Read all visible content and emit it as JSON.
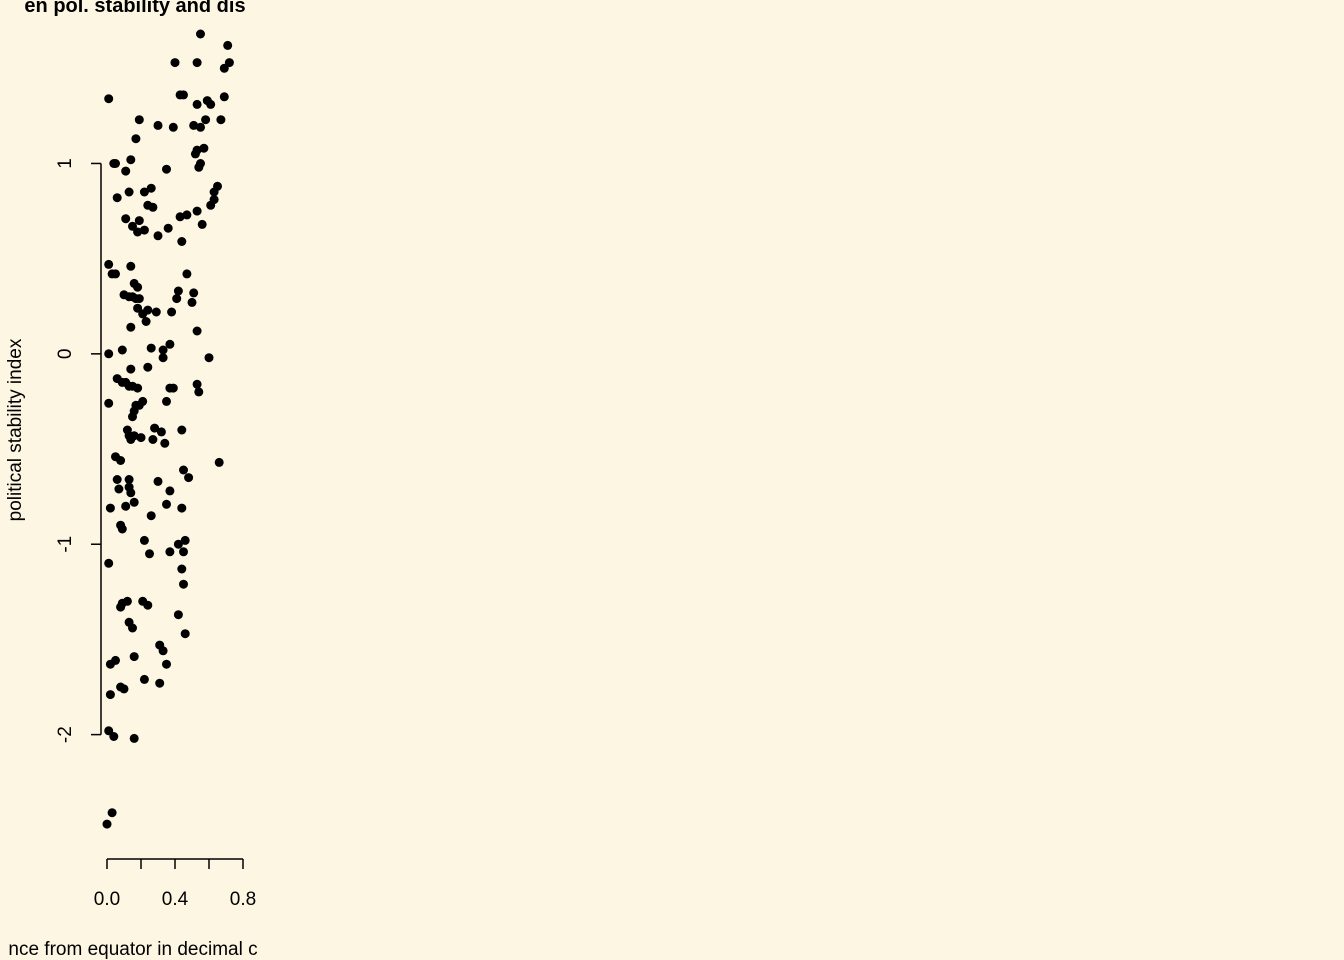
{
  "chart_data": {
    "type": "scatter",
    "title": "en pol. stability and dis",
    "xlabel": "nce from equator in decimal c",
    "ylabel": "political stability index",
    "x_ticks": [
      {
        "value": 0.0,
        "label": "0.0"
      },
      {
        "value": 0.2,
        "label": ""
      },
      {
        "value": 0.4,
        "label": "0.4"
      },
      {
        "value": 0.6,
        "label": ""
      },
      {
        "value": 0.8,
        "label": "0.8"
      }
    ],
    "y_ticks": [
      {
        "value": -2,
        "label": "-2"
      },
      {
        "value": -1,
        "label": "-1"
      },
      {
        "value": 0,
        "label": "0"
      },
      {
        "value": 1,
        "label": "1"
      }
    ],
    "xlim": [
      0.0,
      0.8
    ],
    "ylim": [
      -2.48,
      1.68
    ],
    "grid": false,
    "point_color": "#000000",
    "background_color": "#FDF6E3",
    "points": [
      [
        0.01,
        1.34
      ],
      [
        0.04,
        1.0
      ],
      [
        0.05,
        1.0
      ],
      [
        0.11,
        0.96
      ],
      [
        0.14,
        1.02
      ],
      [
        0.06,
        0.82
      ],
      [
        0.13,
        0.85
      ],
      [
        0.17,
        1.13
      ],
      [
        0.19,
        1.23
      ],
      [
        0.3,
        1.2
      ],
      [
        0.4,
        1.53
      ],
      [
        0.39,
        1.19
      ],
      [
        0.35,
        0.97
      ],
      [
        0.22,
        0.85
      ],
      [
        0.26,
        0.87
      ],
      [
        0.24,
        0.78
      ],
      [
        0.27,
        0.77
      ],
      [
        0.19,
        0.7
      ],
      [
        0.15,
        0.67
      ],
      [
        0.11,
        0.71
      ],
      [
        0.18,
        0.64
      ],
      [
        0.22,
        0.65
      ],
      [
        0.3,
        0.62
      ],
      [
        0.36,
        0.66
      ],
      [
        0.43,
        0.72
      ],
      [
        0.47,
        0.73
      ],
      [
        0.53,
        0.75
      ],
      [
        0.56,
        0.68
      ],
      [
        0.44,
        0.59
      ],
      [
        0.54,
        0.98
      ],
      [
        0.52,
        1.05
      ],
      [
        0.55,
        1.0
      ],
      [
        0.53,
        1.07
      ],
      [
        0.57,
        1.08
      ],
      [
        0.51,
        1.2
      ],
      [
        0.55,
        1.19
      ],
      [
        0.58,
        1.23
      ],
      [
        0.61,
        1.31
      ],
      [
        0.59,
        1.33
      ],
      [
        0.53,
        1.31
      ],
      [
        0.43,
        1.36
      ],
      [
        0.45,
        1.36
      ],
      [
        0.53,
        1.53
      ],
      [
        0.55,
        1.68
      ],
      [
        0.67,
        1.23
      ],
      [
        0.69,
        1.35
      ],
      [
        0.69,
        1.5
      ],
      [
        0.72,
        1.53
      ],
      [
        0.71,
        1.62
      ],
      [
        0.65,
        0.88
      ],
      [
        0.63,
        0.85
      ],
      [
        0.61,
        0.78
      ],
      [
        0.63,
        0.81
      ],
      [
        0.01,
        0.47
      ],
      [
        0.03,
        0.42
      ],
      [
        0.05,
        0.42
      ],
      [
        0.1,
        0.31
      ],
      [
        0.13,
        0.3
      ],
      [
        0.14,
        0.46
      ],
      [
        0.15,
        0.3
      ],
      [
        0.16,
        0.37
      ],
      [
        0.17,
        0.29
      ],
      [
        0.18,
        0.35
      ],
      [
        0.19,
        0.29
      ],
      [
        0.18,
        0.24
      ],
      [
        0.23,
        0.17
      ],
      [
        0.21,
        0.21
      ],
      [
        0.24,
        0.23
      ],
      [
        0.29,
        0.22
      ],
      [
        0.14,
        0.14
      ],
      [
        0.38,
        0.22
      ],
      [
        0.41,
        0.29
      ],
      [
        0.42,
        0.33
      ],
      [
        0.47,
        0.42
      ],
      [
        0.5,
        0.27
      ],
      [
        0.51,
        0.32
      ],
      [
        0.53,
        0.12
      ],
      [
        0.01,
        0.0
      ],
      [
        0.09,
        0.02
      ],
      [
        0.26,
        0.03
      ],
      [
        0.33,
        0.02
      ],
      [
        0.33,
        -0.02
      ],
      [
        0.37,
        0.05
      ],
      [
        0.6,
        -0.02
      ],
      [
        0.14,
        -0.08
      ],
      [
        0.24,
        -0.07
      ],
      [
        0.01,
        -0.26
      ],
      [
        0.06,
        -0.13
      ],
      [
        0.09,
        -0.15
      ],
      [
        0.11,
        -0.15
      ],
      [
        0.13,
        -0.17
      ],
      [
        0.15,
        -0.17
      ],
      [
        0.18,
        -0.18
      ],
      [
        0.21,
        -0.25
      ],
      [
        0.17,
        -0.27
      ],
      [
        0.19,
        -0.27
      ],
      [
        0.15,
        -0.33
      ],
      [
        0.16,
        -0.3
      ],
      [
        0.12,
        -0.4
      ],
      [
        0.13,
        -0.43
      ],
      [
        0.14,
        -0.45
      ],
      [
        0.16,
        -0.43
      ],
      [
        0.2,
        -0.44
      ],
      [
        0.28,
        -0.39
      ],
      [
        0.27,
        -0.45
      ],
      [
        0.32,
        -0.41
      ],
      [
        0.34,
        -0.47
      ],
      [
        0.35,
        -0.25
      ],
      [
        0.37,
        -0.18
      ],
      [
        0.39,
        -0.18
      ],
      [
        0.44,
        -0.4
      ],
      [
        0.53,
        -0.16
      ],
      [
        0.54,
        -0.2
      ],
      [
        0.66,
        -0.57
      ],
      [
        0.05,
        -0.54
      ],
      [
        0.08,
        -0.56
      ],
      [
        0.06,
        -0.66
      ],
      [
        0.07,
        -0.71
      ],
      [
        0.13,
        -0.66
      ],
      [
        0.13,
        -0.7
      ],
      [
        0.14,
        -0.73
      ],
      [
        0.02,
        -0.81
      ],
      [
        0.11,
        -0.8
      ],
      [
        0.16,
        -0.78
      ],
      [
        0.08,
        -0.9
      ],
      [
        0.09,
        -0.92
      ],
      [
        0.26,
        -0.85
      ],
      [
        0.3,
        -0.67
      ],
      [
        0.37,
        -0.72
      ],
      [
        0.35,
        -0.79
      ],
      [
        0.44,
        -0.81
      ],
      [
        0.45,
        -0.61
      ],
      [
        0.48,
        -0.65
      ],
      [
        0.22,
        -0.98
      ],
      [
        0.25,
        -1.05
      ],
      [
        0.37,
        -1.04
      ],
      [
        0.42,
        -1.0
      ],
      [
        0.45,
        -1.04
      ],
      [
        0.46,
        -0.98
      ],
      [
        0.44,
        -1.13
      ],
      [
        0.45,
        -1.21
      ],
      [
        0.01,
        -1.1
      ],
      [
        0.08,
        -1.33
      ],
      [
        0.09,
        -1.31
      ],
      [
        0.12,
        -1.3
      ],
      [
        0.13,
        -1.41
      ],
      [
        0.15,
        -1.44
      ],
      [
        0.21,
        -1.3
      ],
      [
        0.24,
        -1.32
      ],
      [
        0.42,
        -1.37
      ],
      [
        0.46,
        -1.47
      ],
      [
        0.16,
        -1.59
      ],
      [
        0.31,
        -1.53
      ],
      [
        0.33,
        -1.56
      ],
      [
        0.35,
        -1.63
      ],
      [
        0.02,
        -1.63
      ],
      [
        0.05,
        -1.61
      ],
      [
        0.02,
        -1.79
      ],
      [
        0.08,
        -1.75
      ],
      [
        0.1,
        -1.76
      ],
      [
        0.22,
        -1.71
      ],
      [
        0.31,
        -1.73
      ],
      [
        0.01,
        -1.98
      ],
      [
        0.04,
        -2.01
      ],
      [
        0.16,
        -2.02
      ],
      [
        0.0,
        -2.47
      ],
      [
        0.03,
        -2.41
      ]
    ]
  }
}
